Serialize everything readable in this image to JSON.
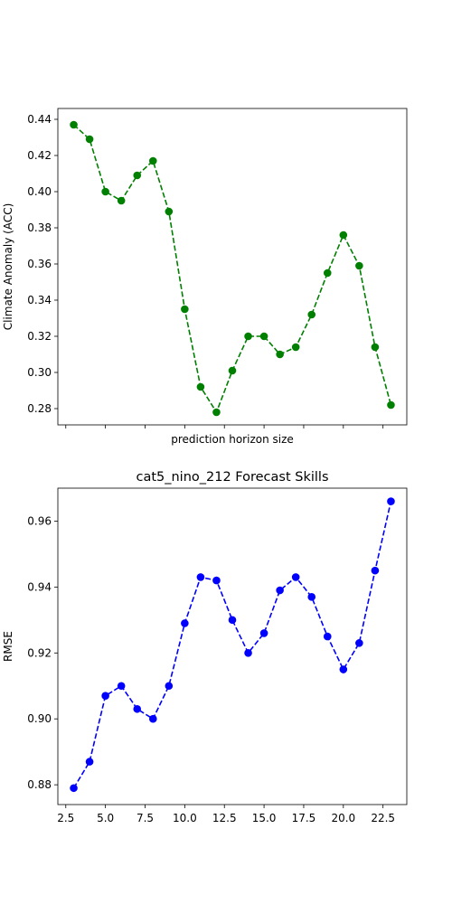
{
  "chart_data": [
    {
      "type": "line",
      "title": "",
      "xlabel": "prediction horizon size",
      "ylabel": "Climate Anomaly (ACC)",
      "xlim": [
        2,
        24
      ],
      "ylim": [
        0.271,
        0.446
      ],
      "x_ticks": [
        2.5,
        5.0,
        7.5,
        10.0,
        12.5,
        15.0,
        17.5,
        20.0,
        22.5
      ],
      "x_tick_labels_shown": false,
      "y_ticks": [
        0.28,
        0.3,
        0.32,
        0.34,
        0.36,
        0.38,
        0.4,
        0.42,
        0.44
      ],
      "y_tick_labels": [
        "0.28",
        "0.30",
        "0.32",
        "0.34",
        "0.36",
        "0.38",
        "0.40",
        "0.42",
        "0.44"
      ],
      "grid": false,
      "series": [
        {
          "color": "#008000",
          "linestyle": "dashed",
          "marker": "circle",
          "x": [
            3,
            4,
            5,
            6,
            7,
            8,
            9,
            10,
            11,
            12,
            13,
            14,
            15,
            16,
            17,
            18,
            19,
            20,
            21,
            22,
            23
          ],
          "values": [
            0.437,
            0.429,
            0.4,
            0.395,
            0.409,
            0.417,
            0.389,
            0.335,
            0.292,
            0.278,
            0.301,
            0.32,
            0.32,
            0.31,
            0.314,
            0.332,
            0.355,
            0.376,
            0.359,
            0.314,
            0.282
          ]
        }
      ]
    },
    {
      "type": "line",
      "title": "cat5_nino_212 Forecast Skills",
      "xlabel": "",
      "ylabel": "RMSE",
      "xlim": [
        2,
        24
      ],
      "ylim": [
        0.874,
        0.97
      ],
      "x_ticks": [
        2.5,
        5.0,
        7.5,
        10.0,
        12.5,
        15.0,
        17.5,
        20.0,
        22.5
      ],
      "x_tick_labels": [
        "2.5",
        "5.0",
        "7.5",
        "10.0",
        "12.5",
        "15.0",
        "17.5",
        "20.0",
        "22.5"
      ],
      "y_ticks": [
        0.88,
        0.9,
        0.92,
        0.94,
        0.96
      ],
      "y_tick_labels": [
        "0.88",
        "0.90",
        "0.92",
        "0.94",
        "0.96"
      ],
      "grid": false,
      "series": [
        {
          "color": "#0000ff",
          "linestyle": "dashed",
          "marker": "circle",
          "x": [
            3,
            4,
            5,
            6,
            7,
            8,
            9,
            10,
            11,
            12,
            13,
            14,
            15,
            16,
            17,
            18,
            19,
            20,
            21,
            22,
            23
          ],
          "values": [
            0.879,
            0.887,
            0.907,
            0.91,
            0.903,
            0.9,
            0.91,
            0.929,
            0.943,
            0.942,
            0.93,
            0.92,
            0.926,
            0.939,
            0.943,
            0.937,
            0.925,
            0.915,
            0.923,
            0.945,
            0.966
          ]
        }
      ]
    }
  ]
}
